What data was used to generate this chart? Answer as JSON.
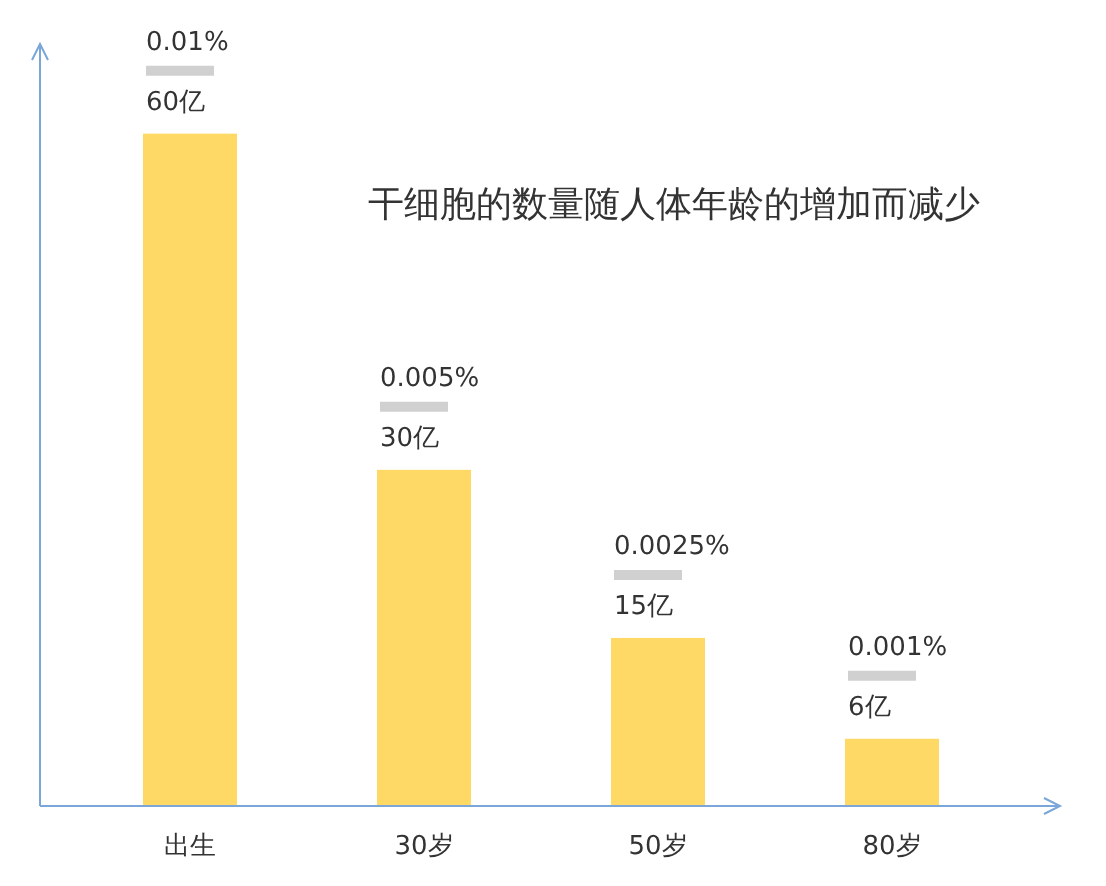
{
  "chart_data": {
    "type": "bar",
    "title": "干细胞的数量随人体年龄的增加而减少",
    "categories": [
      "出生",
      "30岁",
      "50岁",
      "80岁"
    ],
    "values": [
      60,
      30,
      15,
      6
    ],
    "value_labels": [
      "60亿",
      "30亿",
      "15亿",
      "6亿"
    ],
    "color": "#ffd966",
    "ylim": [
      0,
      68
    ],
    "tick_labels": "x",
    "annotations": [
      {
        "text": "0.01%",
        "x": "出生",
        "y": 60
      },
      {
        "text": "0.005%",
        "x": "30岁",
        "y": 30
      },
      {
        "text": "0.0025%",
        "x": "50岁",
        "y": 15
      },
      {
        "text": "0.001%",
        "x": "80岁",
        "y": 6
      }
    ]
  }
}
